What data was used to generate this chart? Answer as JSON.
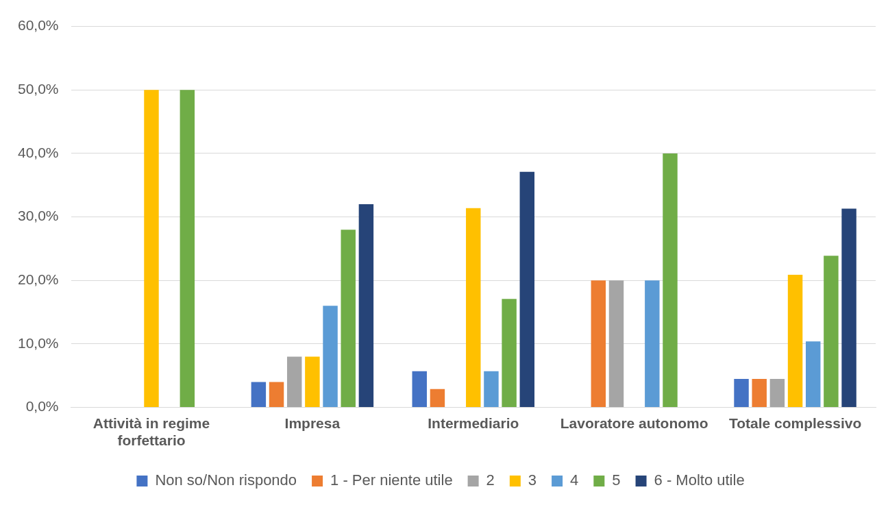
{
  "chart_data": {
    "type": "bar",
    "categories": [
      "Attività in regime forfettario",
      "Impresa",
      "Intermediario",
      "Lavoratore autonomo",
      "Totale complessivo"
    ],
    "series": [
      {
        "name": "Non so/Non rispondo",
        "color": "#4472c4",
        "values": [
          0,
          4,
          5.7,
          0,
          4.5
        ]
      },
      {
        "name": "1 - Per niente utile",
        "color": "#ed7d31",
        "values": [
          0,
          4,
          2.9,
          20,
          4.5
        ]
      },
      {
        "name": "2",
        "color": "#a5a5a5",
        "values": [
          0,
          8,
          0,
          20,
          4.5
        ]
      },
      {
        "name": "3",
        "color": "#ffc000",
        "values": [
          50,
          8,
          31.4,
          0,
          20.9
        ]
      },
      {
        "name": "4",
        "color": "#5b9bd5",
        "values": [
          0,
          16,
          5.7,
          20,
          10.4
        ]
      },
      {
        "name": "5",
        "color": "#70ad47",
        "values": [
          50,
          28,
          17.1,
          40,
          23.9
        ]
      },
      {
        "name": "6 - Molto utile",
        "color": "#264478",
        "values": [
          0,
          32,
          37.1,
          0,
          31.3
        ]
      }
    ],
    "ylim": [
      0,
      60
    ],
    "yticks": [
      {
        "value": 0,
        "label": "0,0%"
      },
      {
        "value": 10,
        "label": "10,0%"
      },
      {
        "value": 20,
        "label": "20,0%"
      },
      {
        "value": 30,
        "label": "30,0%"
      },
      {
        "value": 40,
        "label": "40,0%"
      },
      {
        "value": 50,
        "label": "50,0%"
      },
      {
        "value": 60,
        "label": "60,0%"
      }
    ],
    "grid": "y",
    "legend": "bottom"
  }
}
